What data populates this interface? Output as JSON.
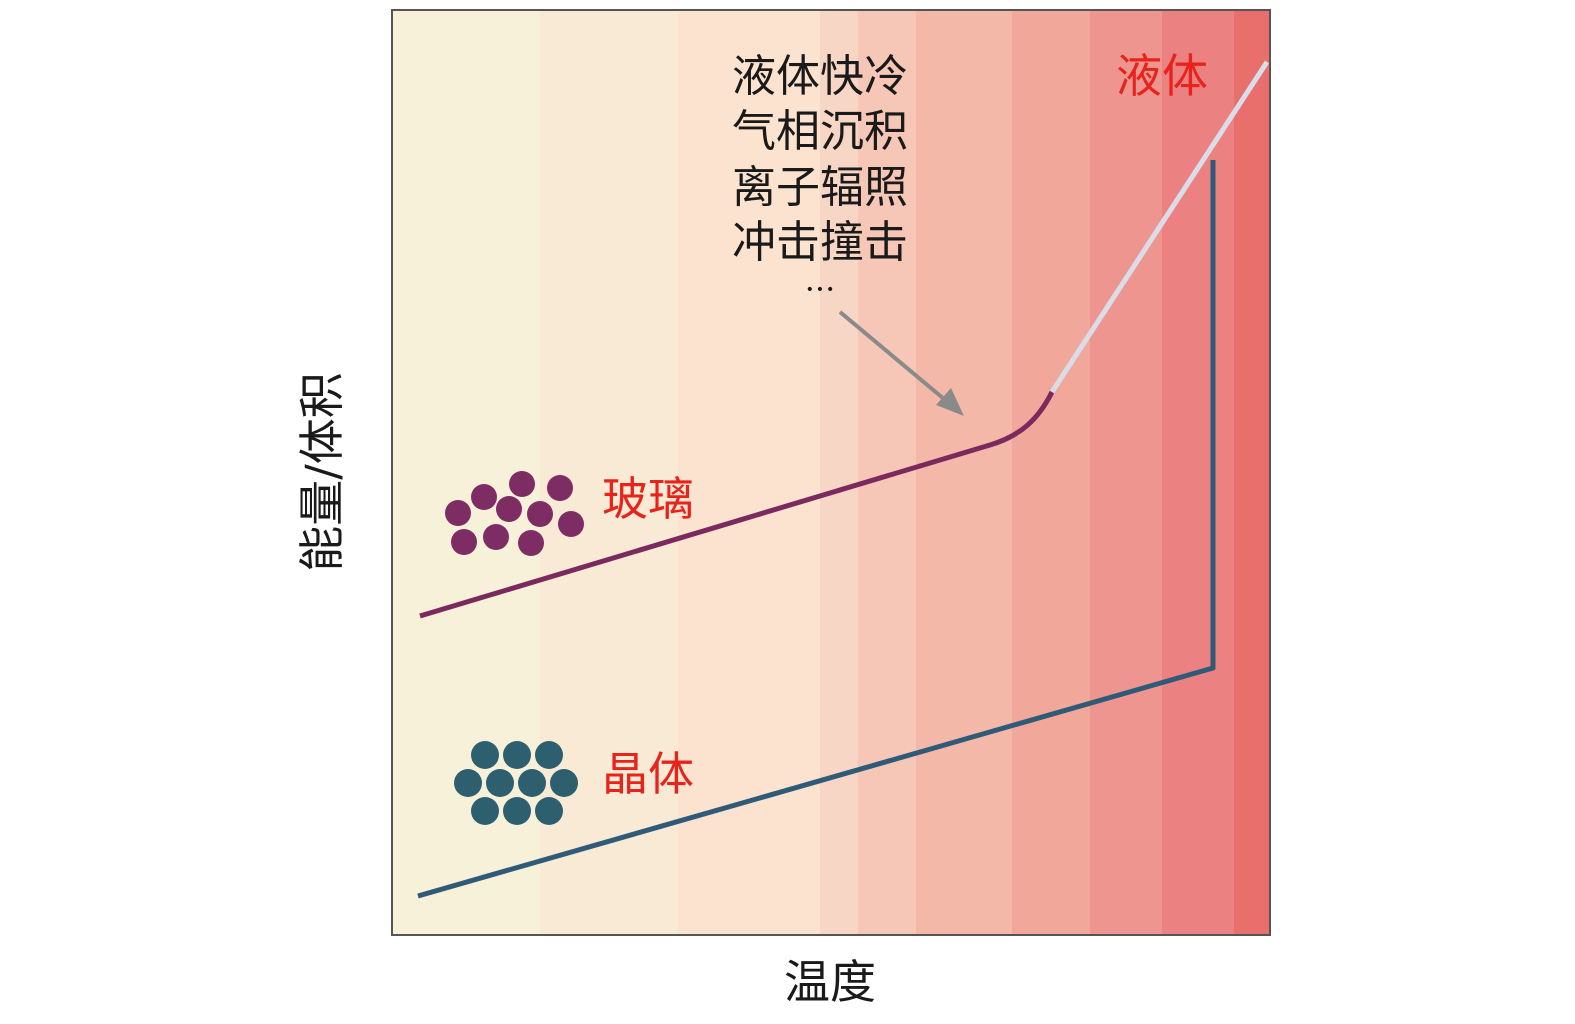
{
  "axes": {
    "y_label": "能量/体积",
    "x_label": "温度"
  },
  "labels": {
    "liquid": "液体",
    "glass": "玻璃",
    "crystal": "晶体"
  },
  "annotation": {
    "methods": [
      "液体快冷",
      "气相沉积",
      "离子辐照",
      "冲击撞击",
      "···"
    ]
  },
  "colors": {
    "label_red": "#e8231b",
    "glass_curve": "#7b2a5e",
    "glass_atom": "#7e2d64",
    "crystal_curve": "#2f5b78",
    "crystal_atom": "#2d5f6e",
    "liquid_curve": "#d9dde8",
    "arrow": "#8a8a8a",
    "frame": "#555555"
  },
  "background_gradient": [
    "#f7f1d9",
    "#f9ead5",
    "#fbe3cf",
    "#f8d6c5",
    "#f6c6b6",
    "#f3b8a8",
    "#f2a79b",
    "#ef9590",
    "#ec8182",
    "#e86f6c",
    "#e06a57"
  ]
}
